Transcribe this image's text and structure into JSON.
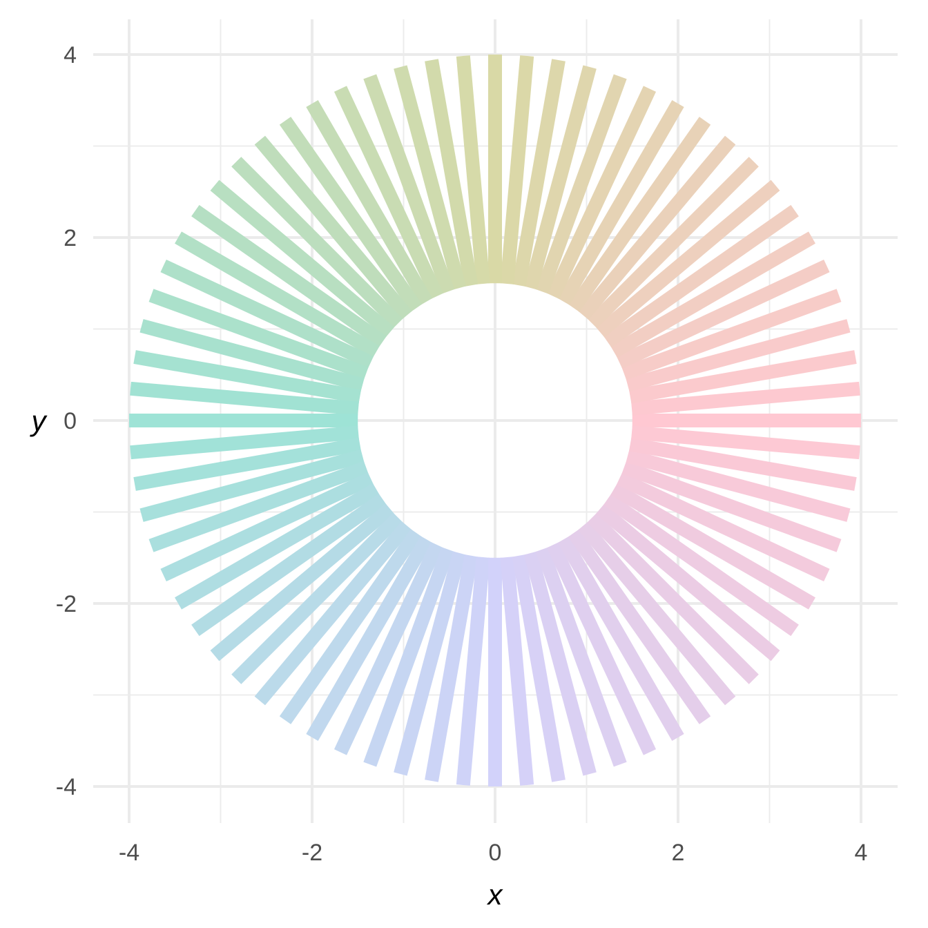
{
  "chart_data": {
    "type": "line",
    "title": "",
    "xlabel": "x",
    "ylabel": "y",
    "xlim": [
      -4,
      4
    ],
    "ylim": [
      -4,
      4
    ],
    "x_ticks": [
      -4,
      -2,
      0,
      2,
      4
    ],
    "y_ticks": [
      -4,
      -2,
      0,
      2,
      4
    ],
    "x_tick_labels": [
      "-4",
      "-2",
      "0",
      "2",
      "4"
    ],
    "y_tick_labels": [
      "-4",
      "-2",
      "0",
      "2",
      "4"
    ],
    "minor_grid": [
      -3,
      -1,
      1,
      3
    ],
    "grid": true,
    "legend": "none",
    "segments": {
      "count": 72,
      "inner_radius": 1.5,
      "outer_radius": 4,
      "center": [
        0,
        0
      ],
      "start_angle_deg": 0,
      "step_deg": 5,
      "color_mapping": "hue by angle",
      "colors": {
        "right": "#ffc8d2",
        "top": "#d9d9a6",
        "left": "#9ee3d6",
        "bottom": "#d2d2fa"
      }
    }
  }
}
